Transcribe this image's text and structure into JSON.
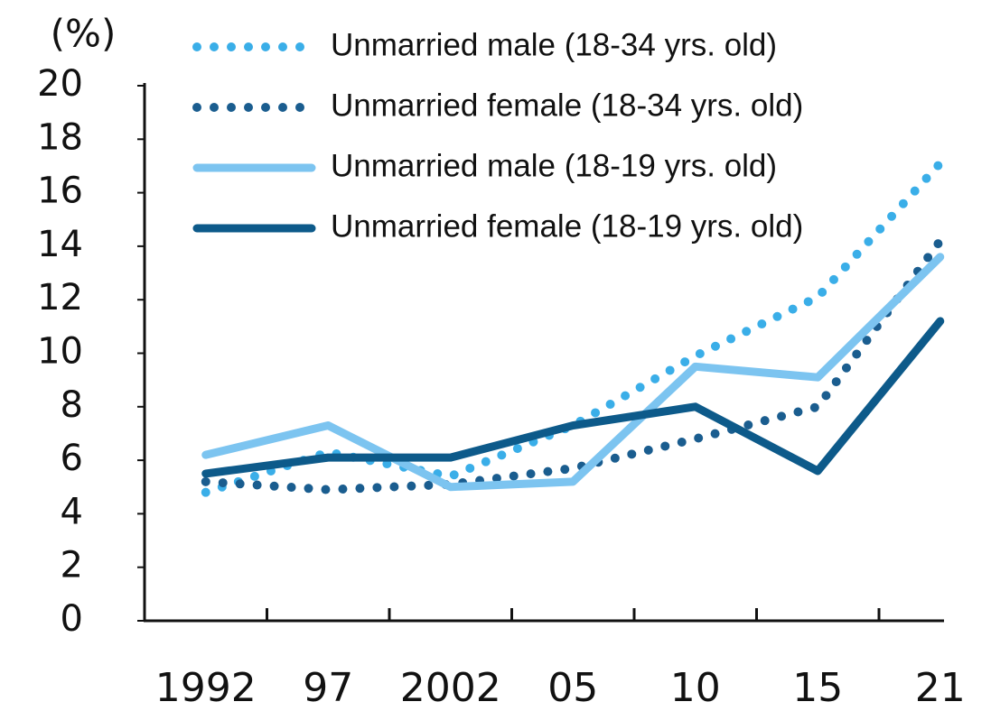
{
  "chart_data": {
    "type": "line",
    "y_label": "(%)",
    "categories": [
      "1992",
      "97",
      "2002",
      "05",
      "10",
      "15",
      "21"
    ],
    "series": [
      {
        "name": "Unmarried male (18-34 yrs. old)",
        "color": "#3aaee8",
        "style": "dotted",
        "values": [
          4.8,
          6.3,
          5.4,
          7.3,
          9.9,
          12.1,
          17.1
        ]
      },
      {
        "name": "Unmarried female (18-34 yrs. old)",
        "color": "#1a5d8f",
        "style": "dotted",
        "values": [
          5.2,
          4.9,
          5.1,
          5.7,
          6.8,
          8.0,
          14.2
        ]
      },
      {
        "name": "Unmarried male (18-19 yrs. old)",
        "color": "#7cc4f0",
        "style": "solid",
        "values": [
          6.2,
          7.3,
          5.0,
          5.2,
          9.5,
          9.1,
          13.6
        ]
      },
      {
        "name": "Unmarried female (18-19 yrs. old)",
        "color": "#0d5a8a",
        "style": "solid",
        "values": [
          5.5,
          6.1,
          6.1,
          7.3,
          8.0,
          5.6,
          11.2
        ]
      }
    ],
    "ylim": [
      0,
      20
    ],
    "yticks": [
      0,
      2,
      4,
      6,
      8,
      10,
      12,
      14,
      16,
      18,
      20
    ],
    "legend": "top-left"
  }
}
